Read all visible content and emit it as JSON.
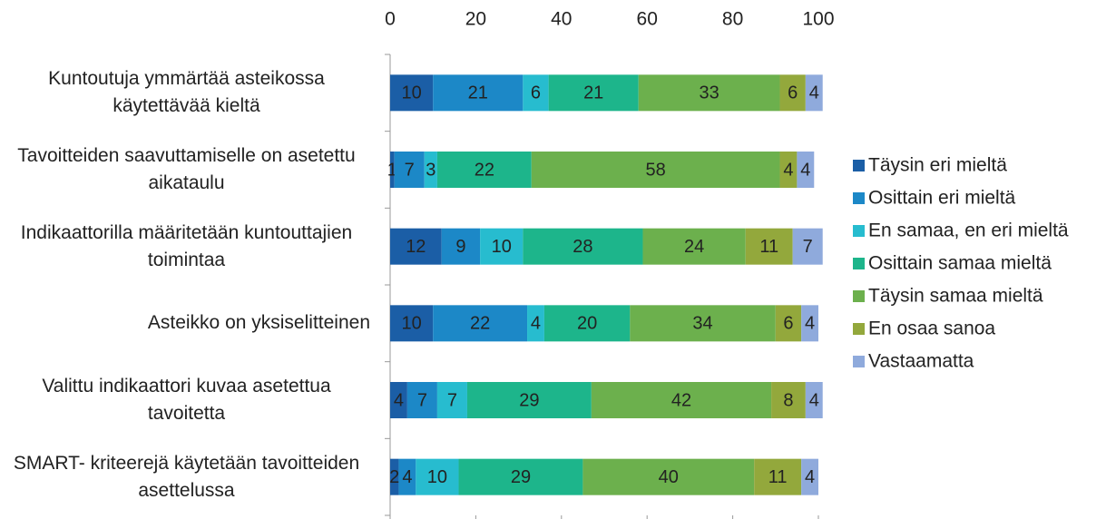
{
  "chart_data": {
    "type": "bar",
    "orientation": "horizontal",
    "stacked": true,
    "categories": [
      "Kuntoutuja ymmärtää asteikossa käytettävää kieltä",
      "Tavoitteiden saavuttamiselle on asetettu aikataulu",
      "Indikaattorilla määritetään kuntouttajien toimintaa",
      "Asteikko on yksiselitteinen",
      "Valittu indikaattori kuvaa asetettua tavoitetta",
      "SMART- kriteerejä käytetään tavoitteiden asettelussa"
    ],
    "series": [
      {
        "name": "Täysin eri mieltä",
        "color": "#1b5ea6",
        "values": [
          10,
          1,
          12,
          10,
          4,
          2
        ]
      },
      {
        "name": "Osittain eri mieltä",
        "color": "#1c88c7",
        "values": [
          21,
          7,
          9,
          22,
          7,
          4
        ]
      },
      {
        "name": "En samaa, en eri mieltä",
        "color": "#27bccf",
        "values": [
          6,
          3,
          10,
          4,
          7,
          10
        ]
      },
      {
        "name": "Osittain samaa mieltä",
        "color": "#1db58b",
        "values": [
          21,
          22,
          28,
          20,
          29,
          29
        ]
      },
      {
        "name": "Täysin samaa mieltä",
        "color": "#6cb04d",
        "values": [
          33,
          58,
          24,
          34,
          42,
          40
        ]
      },
      {
        "name": "En osaa sanoa",
        "color": "#93a83c",
        "values": [
          6,
          4,
          11,
          6,
          8,
          11
        ]
      },
      {
        "name": "Vastaamatta",
        "color": "#8faadc",
        "values": [
          4,
          4,
          7,
          4,
          4,
          4
        ]
      }
    ],
    "xlim": [
      0,
      100
    ],
    "xticks": [
      0,
      20,
      40,
      60,
      80,
      100
    ],
    "legend": "right"
  }
}
